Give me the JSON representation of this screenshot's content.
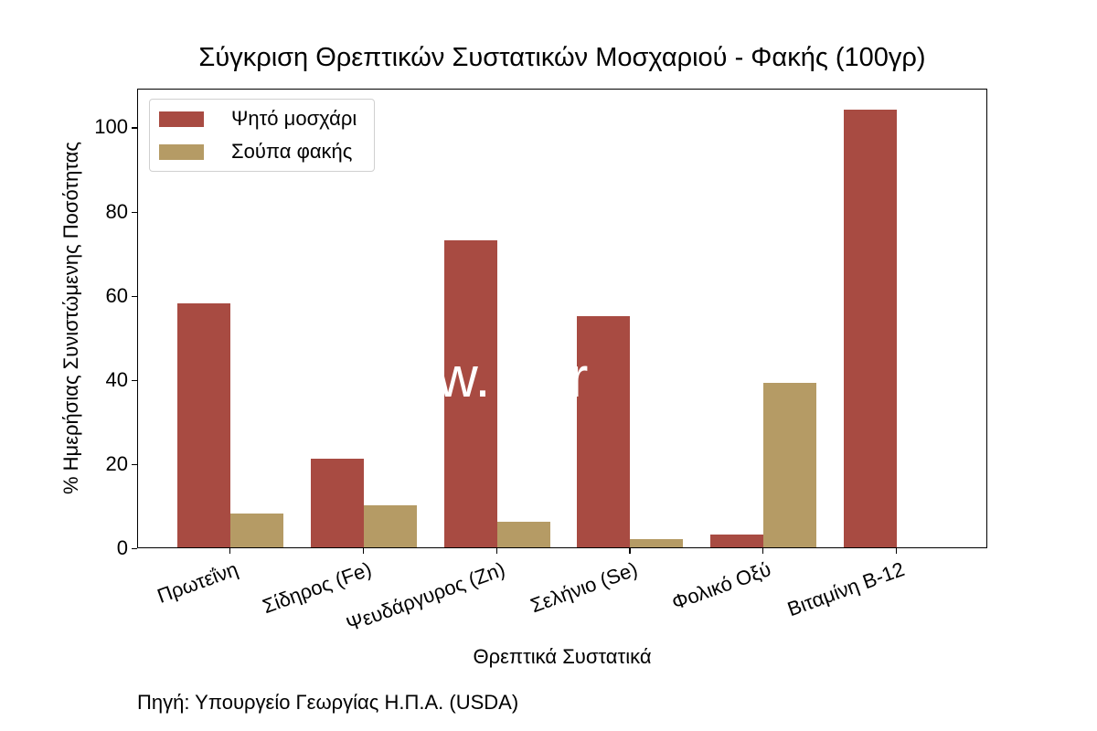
{
  "chart_data": {
    "type": "bar",
    "title": "Σύγκριση Θρεπτικών Συστατικών Μοσχαριού - Φακής (100γρ)",
    "xlabel": "Θρεπτικά Συστατικά",
    "ylabel": "% Ημερήσιας Συνιστώμενης Ποσότητας",
    "categories": [
      "Πρωτεΐνη",
      "Σίδηρος (Fe)",
      "Ψευδάργυρος (Zn)",
      "Σελήνιο (Se)",
      "Φολικό Οξύ",
      "Βιταμίνη B-12"
    ],
    "series": [
      {
        "name": "Ψητό μοσχάρι",
        "color": "#a84b42",
        "values": [
          58,
          21,
          73,
          55,
          3,
          104
        ]
      },
      {
        "name": "Σούπα φακής",
        "color": "#b59b65",
        "values": [
          8,
          10,
          6,
          2,
          39,
          0
        ]
      }
    ],
    "yticks": [
      0,
      20,
      40,
      60,
      80,
      100
    ],
    "ylim": [
      0,
      109.2
    ],
    "grid": false,
    "legend_position": "upper left",
    "source_note": "Πηγή: Υπουργείο Γεωργίας Η.Π.Α. (USDA)",
    "watermark": "w.   er"
  }
}
